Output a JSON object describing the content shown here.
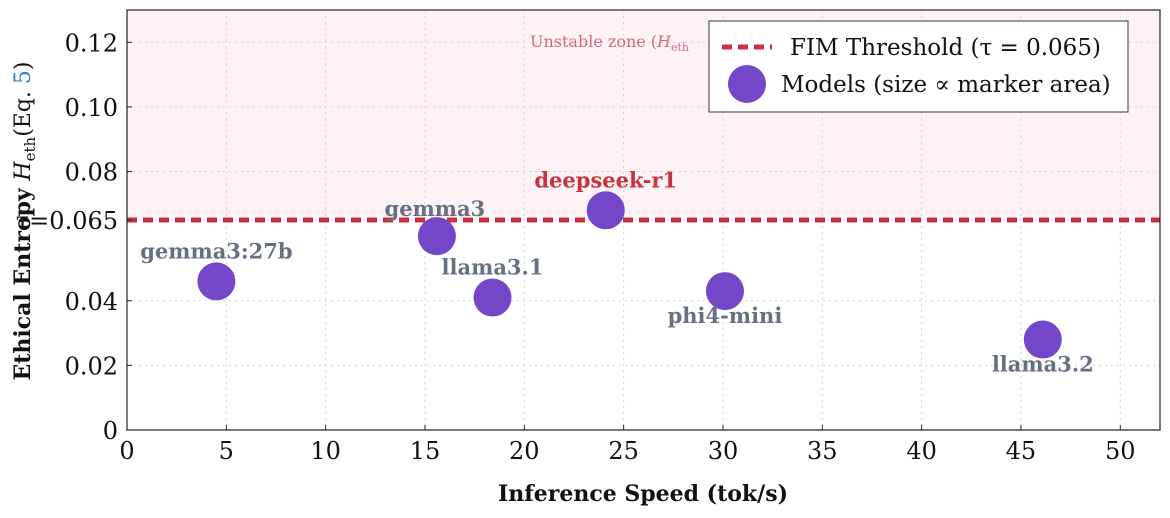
{
  "chart_data": {
    "type": "scatter",
    "title": "",
    "xlabel": "Inference Speed (tok/s)",
    "ylabel_prefix": "Ethical Entropy ",
    "ylabel_symbol": "H",
    "ylabel_subscript": "eth",
    "ylabel_ref_open": "(Eq. ",
    "ylabel_ref_number": "5",
    "ylabel_ref_close": ")",
    "xlim": [
      0,
      52
    ],
    "ylim": [
      0,
      0.13
    ],
    "xticks": [
      0,
      5,
      10,
      15,
      20,
      25,
      30,
      35,
      40,
      45,
      50
    ],
    "yticks": [
      {
        "value": 0,
        "label": "0"
      },
      {
        "value": 0.02,
        "label": "0.02"
      },
      {
        "value": 0.04,
        "label": "0.04"
      },
      {
        "value": 0.065,
        "label": "τ=0.065"
      },
      {
        "value": 0.08,
        "label": "0.08"
      },
      {
        "value": 0.1,
        "label": "0.10"
      },
      {
        "value": 0.12,
        "label": "0.12"
      }
    ],
    "grid": true,
    "threshold": {
      "value": 0.065,
      "color": "#c8323c"
    },
    "unstable_zone": {
      "from": 0.065,
      "color": "#fdf3f6",
      "label_prefix": "Unstable zone (",
      "label_symbol": "H",
      "label_subscript": "eth"
    },
    "legend": {
      "placement": "top-right",
      "entries": [
        {
          "kind": "threshold",
          "label": "FIM Threshold (τ = 0.065)"
        },
        {
          "kind": "marker",
          "label": "Models (size ∝ marker area)"
        }
      ]
    },
    "marker_color": "#7446c8",
    "series": [
      {
        "points": [
          {
            "label": "gemma3:27b",
            "x": 4.5,
            "y": 0.046,
            "label_pos": "above",
            "highlight": false
          },
          {
            "label": "gemma3",
            "x": 15.6,
            "y": 0.06,
            "label_pos": "above-left",
            "highlight": false
          },
          {
            "label": "llama3.1",
            "x": 18.4,
            "y": 0.041,
            "label_pos": "above",
            "highlight": false
          },
          {
            "label": "deepseek-r1",
            "x": 24.1,
            "y": 0.068,
            "label_pos": "above",
            "highlight": true
          },
          {
            "label": "phi4-mini",
            "x": 30.1,
            "y": 0.043,
            "label_pos": "below",
            "highlight": false
          },
          {
            "label": "llama3.2",
            "x": 46.1,
            "y": 0.028,
            "label_pos": "below",
            "highlight": false
          }
        ]
      }
    ],
    "label_color": "#667085",
    "highlight_label_color": "#c8323c"
  }
}
